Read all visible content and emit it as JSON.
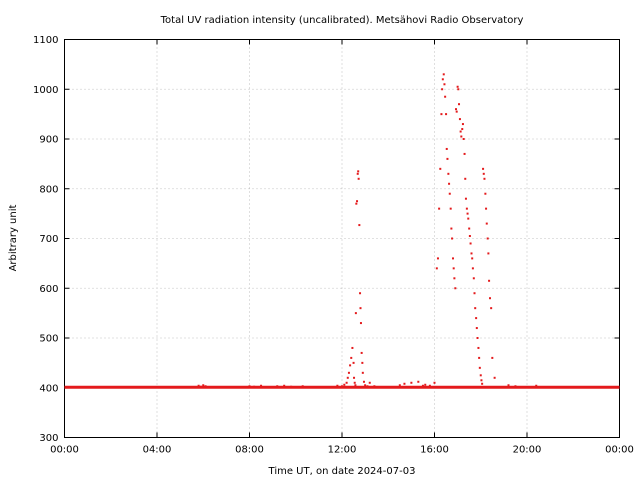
{
  "chart_data": {
    "type": "scatter",
    "title": "Total UV radiation intensity (uncalibrated). Metsähovi Radio Observatory",
    "xlabel": "Time UT, on date 2024-07-03",
    "ylabel": "Arbitrary unit",
    "xlim_hours": [
      0,
      24
    ],
    "ylim": [
      300,
      1100
    ],
    "x_ticks": [
      {
        "label": "00:00",
        "hour": 0
      },
      {
        "label": "04:00",
        "hour": 4
      },
      {
        "label": "08:00",
        "hour": 8
      },
      {
        "label": "12:00",
        "hour": 12
      },
      {
        "label": "16:00",
        "hour": 16
      },
      {
        "label": "20:00",
        "hour": 20
      },
      {
        "label": "00:00",
        "hour": 24
      }
    ],
    "y_ticks": [
      300,
      400,
      500,
      600,
      700,
      800,
      900,
      1000,
      1100
    ],
    "grid": true,
    "grid_style": "dotted",
    "marker_color": "#e41a1c",
    "baseline": {
      "value": 401,
      "from_hour": 0,
      "to_hour": 24
    },
    "series": [
      {
        "x_hours": [
          5.8,
          5.9,
          6.0,
          6.1,
          8.0,
          8.2,
          8.5,
          9.2,
          9.5,
          9.8,
          10.3,
          11.8,
          12.0,
          12.1,
          12.2,
          12.25,
          12.3,
          12.35,
          12.4,
          12.45,
          12.5,
          12.52,
          12.55,
          12.58,
          12.6,
          12.62,
          12.65,
          12.68,
          12.7,
          12.72,
          12.75,
          12.78,
          12.8,
          12.82,
          12.85,
          12.88,
          12.9,
          12.95,
          13.0,
          13.1,
          13.2,
          13.4,
          14.5,
          14.7,
          15.0,
          15.3,
          15.5,
          15.6,
          15.8,
          16.0,
          16.1,
          16.15,
          16.2,
          16.25,
          16.3,
          16.33,
          16.36,
          16.4,
          16.43,
          16.46,
          16.5,
          16.53,
          16.56,
          16.6,
          16.63,
          16.66,
          16.7,
          16.73,
          16.76,
          16.8,
          16.83,
          16.86,
          16.9,
          16.93,
          16.96,
          17.0,
          17.03,
          17.06,
          17.1,
          17.13,
          17.16,
          17.2,
          17.23,
          17.26,
          17.3,
          17.33,
          17.36,
          17.4,
          17.43,
          17.46,
          17.5,
          17.53,
          17.56,
          17.6,
          17.63,
          17.66,
          17.7,
          17.73,
          17.76,
          17.8,
          17.83,
          17.86,
          17.9,
          17.93,
          17.96,
          18.0,
          18.03,
          18.06,
          18.1,
          18.13,
          18.16,
          18.2,
          18.23,
          18.26,
          18.3,
          18.33,
          18.36,
          18.4,
          18.45,
          18.5,
          18.6,
          19.2,
          19.5,
          20.4
        ],
        "y": [
          404,
          402,
          405,
          403,
          403,
          402,
          404,
          403,
          404,
          402,
          403,
          404,
          403,
          406,
          410,
          420,
          430,
          445,
          460,
          480,
          450,
          420,
          410,
          405,
          550,
          770,
          775,
          830,
          835,
          820,
          727,
          590,
          560,
          530,
          470,
          450,
          430,
          412,
          405,
          403,
          410,
          403,
          405,
          408,
          410,
          412,
          404,
          406,
          404,
          410,
          640,
          660,
          760,
          840,
          950,
          1000,
          1020,
          1030,
          1010,
          985,
          950,
          880,
          860,
          830,
          810,
          790,
          760,
          720,
          700,
          660,
          640,
          620,
          600,
          960,
          955,
          1005,
          1000,
          970,
          940,
          915,
          905,
          920,
          930,
          900,
          870,
          820,
          780,
          760,
          750,
          740,
          720,
          705,
          690,
          670,
          660,
          640,
          620,
          590,
          560,
          540,
          520,
          500,
          480,
          460,
          440,
          425,
          415,
          408,
          840,
          830,
          820,
          790,
          760,
          730,
          700,
          670,
          615,
          580,
          560,
          460,
          420,
          405,
          403,
          404
        ]
      }
    ]
  }
}
